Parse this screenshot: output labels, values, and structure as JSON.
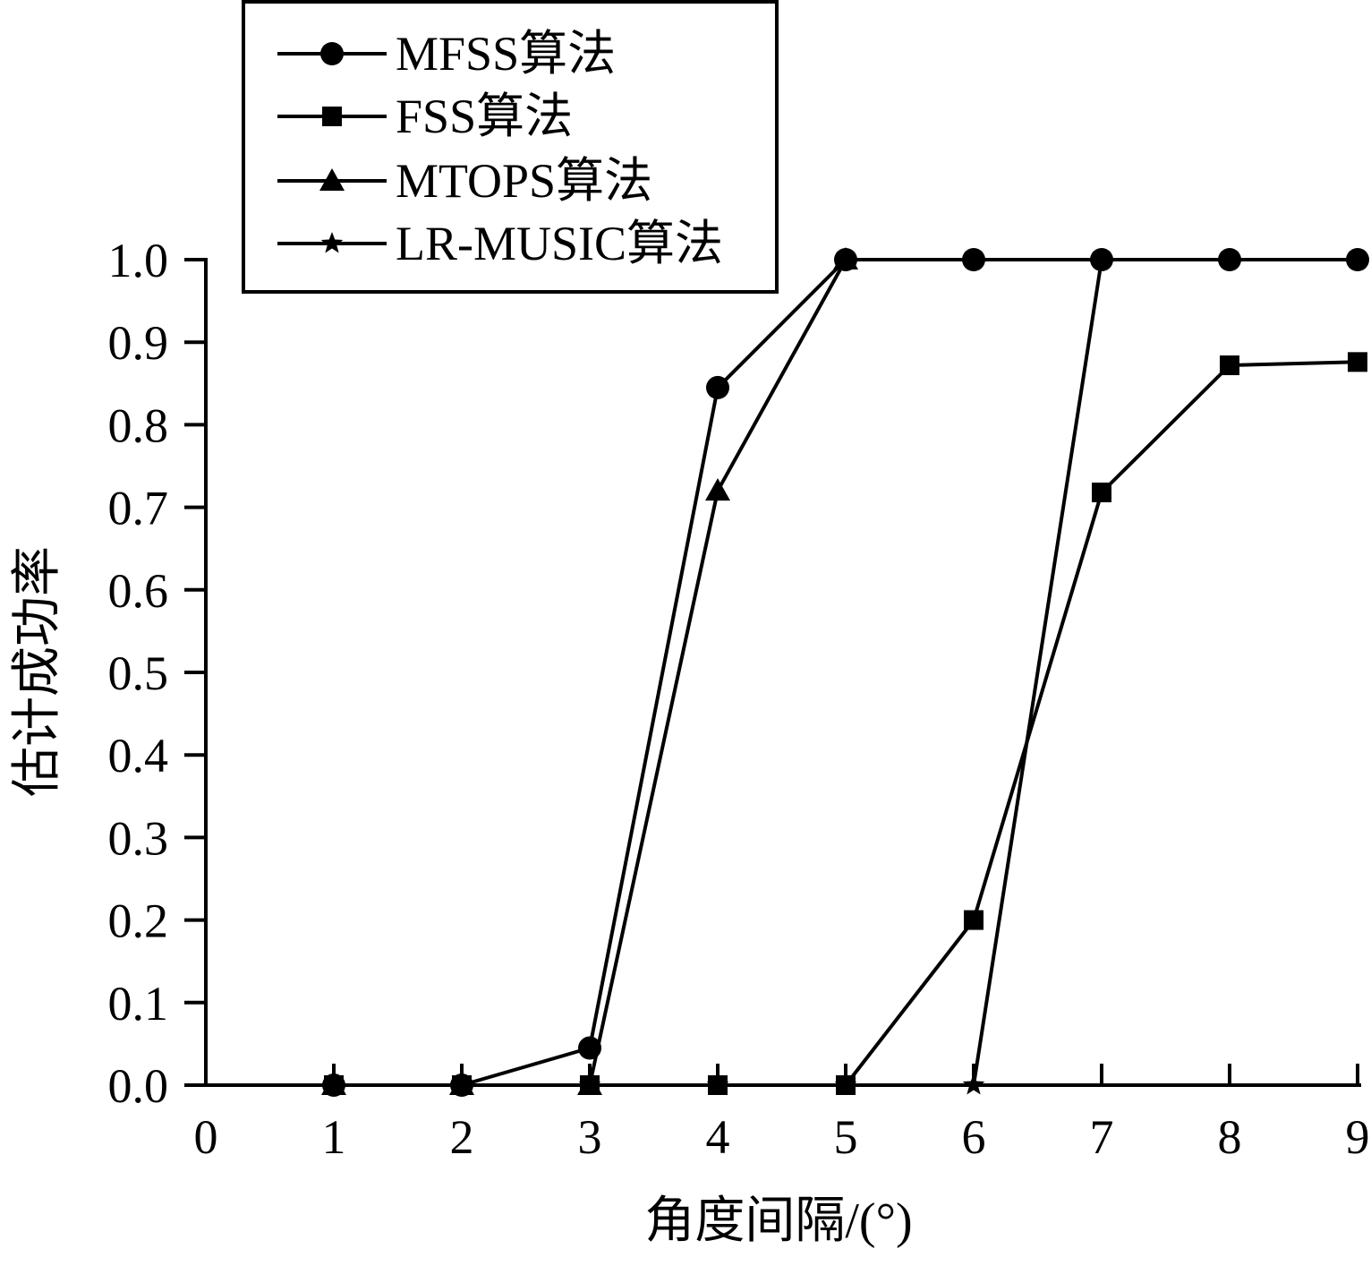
{
  "chart_data": {
    "type": "line",
    "title": "",
    "xlabel": "角度间隔/(°)",
    "ylabel": "估计成功率",
    "xlim": [
      0,
      9
    ],
    "ylim": [
      0,
      1.0
    ],
    "x_ticks": [
      "0",
      "1",
      "2",
      "3",
      "4",
      "5",
      "6",
      "7",
      "8",
      "9"
    ],
    "y_ticks": [
      "0.0",
      "0.1",
      "0.2",
      "0.3",
      "0.4",
      "0.5",
      "0.6",
      "0.7",
      "0.8",
      "0.9",
      "1.0"
    ],
    "grid": false,
    "legend_position": "top-left",
    "series": [
      {
        "name": "MFSS算法",
        "marker": "circle",
        "x": [
          1,
          2,
          3,
          4,
          5,
          6,
          7,
          8,
          9
        ],
        "values": [
          0,
          0,
          0.045,
          0.845,
          1.0,
          1.0,
          1.0,
          1.0,
          1.0
        ]
      },
      {
        "name": "FSS算法",
        "marker": "square",
        "x": [
          1,
          2,
          3,
          4,
          5,
          6,
          7,
          8,
          9
        ],
        "values": [
          0,
          0,
          0,
          0,
          0,
          0.2,
          0.718,
          0.872,
          0.876
        ]
      },
      {
        "name": "MTOPS算法",
        "marker": "triangle",
        "x": [
          1,
          2,
          3,
          4,
          5
        ],
        "values": [
          0,
          0,
          0,
          0.72,
          1.0
        ]
      },
      {
        "name": "LR-MUSIC算法",
        "marker": "star",
        "x": [
          1,
          2,
          3,
          4,
          5,
          6,
          7
        ],
        "values": [
          0,
          0,
          0,
          0,
          0,
          0,
          1.0
        ]
      }
    ]
  }
}
